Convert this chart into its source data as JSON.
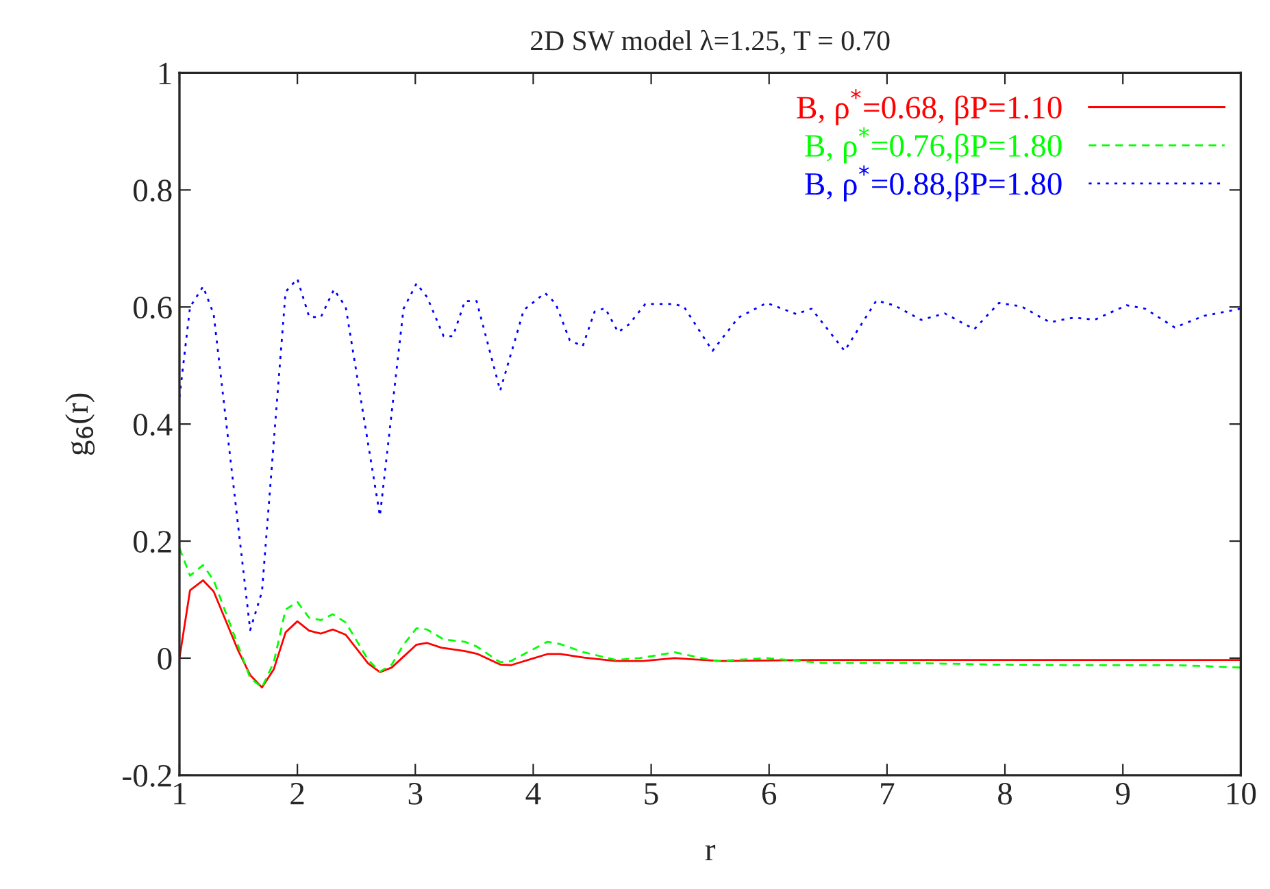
{
  "chart_data": {
    "type": "line",
    "title": "2D SW model λ=1.25, T = 0.70",
    "xlabel": "r",
    "ylabel": "g$_{6}$(r)",
    "xlim": [
      1,
      10
    ],
    "xticks": [
      1,
      2,
      3,
      4,
      5,
      6,
      7,
      8,
      9,
      10
    ],
    "ylim": [
      -0.2,
      1
    ],
    "yticks": [
      -0.2,
      0,
      0.2,
      0.4,
      0.6,
      0.8,
      1
    ],
    "grid": false,
    "legend": "top right",
    "series": [
      {
        "name": "B, ρ$^{*}$=0.68, βP=1.10",
        "color": "#ff0000",
        "line_style": "solid",
        "x": [
          1.0,
          1.09,
          1.2,
          1.29,
          1.5,
          1.6,
          1.7,
          1.8,
          1.9,
          2.0,
          2.1,
          2.2,
          2.3,
          2.41,
          2.6,
          2.7,
          2.8,
          3.01,
          3.1,
          3.22,
          3.42,
          3.53,
          3.72,
          3.81,
          4.12,
          4.23,
          4.43,
          4.7,
          4.93,
          5.2,
          5.59,
          6.36,
          7.0,
          8.0,
          9.0,
          10.0
        ],
        "values": [
          0,
          0.116,
          0.133,
          0.114,
          0.012,
          -0.029,
          -0.05,
          -0.019,
          0.044,
          0.063,
          0.047,
          0.042,
          0.049,
          0.04,
          -0.009,
          -0.024,
          -0.016,
          0.023,
          0.026,
          0.018,
          0.012,
          0.007,
          -0.011,
          -0.012,
          0.007,
          0.007,
          0.001,
          -0.005,
          -0.005,
          0.0,
          -0.005,
          -0.003,
          -0.003,
          -0.003,
          -0.003,
          -0.003
        ]
      },
      {
        "name": "B, ρ$^{*}$=0.76,βP=1.80",
        "color": "#00ff00",
        "line_style": "dashed",
        "x": [
          1.0,
          1.09,
          1.2,
          1.29,
          1.5,
          1.6,
          1.7,
          1.8,
          1.9,
          2.0,
          2.1,
          2.2,
          2.3,
          2.41,
          2.6,
          2.7,
          2.8,
          2.9,
          3.01,
          3.1,
          3.24,
          3.42,
          3.52,
          3.72,
          3.81,
          4.12,
          4.23,
          4.43,
          4.7,
          4.9,
          5.2,
          5.55,
          5.98,
          6.45,
          7.15,
          7.9,
          8.7,
          9.46,
          10.0
        ],
        "values": [
          0.188,
          0.141,
          0.159,
          0.133,
          0.02,
          -0.034,
          -0.05,
          -0.007,
          0.083,
          0.096,
          0.069,
          0.065,
          0.075,
          0.061,
          -0.003,
          -0.023,
          -0.011,
          0.023,
          0.051,
          0.049,
          0.032,
          0.028,
          0.02,
          -0.007,
          -0.005,
          0.028,
          0.024,
          0.01,
          -0.003,
          0,
          0.01,
          -0.005,
          0,
          -0.008,
          -0.008,
          -0.011,
          -0.012,
          -0.012,
          -0.016
        ]
      },
      {
        "name": "B, ρ$^{*}$=0.88,βP=1.80",
        "color": "#0000ff",
        "line_style": "dotted",
        "x": [
          1.0,
          1.09,
          1.2,
          1.29,
          1.6,
          1.7,
          1.9,
          2.0,
          2.1,
          2.2,
          2.31,
          2.41,
          2.7,
          2.9,
          3.01,
          3.1,
          3.24,
          3.32,
          3.42,
          3.52,
          3.72,
          3.92,
          4.1,
          4.19,
          4.31,
          4.42,
          4.52,
          4.61,
          4.72,
          4.81,
          4.95,
          5.2,
          5.28,
          5.52,
          5.74,
          5.98,
          6.23,
          6.36,
          6.64,
          6.91,
          7.06,
          7.29,
          7.49,
          7.74,
          7.95,
          8.14,
          8.38,
          8.59,
          8.76,
          9.03,
          9.19,
          9.44,
          9.69,
          10.0
        ],
        "values": [
          0.446,
          0.6,
          0.635,
          0.588,
          0.048,
          0.114,
          0.626,
          0.648,
          0.583,
          0.583,
          0.63,
          0.6,
          0.243,
          0.597,
          0.64,
          0.617,
          0.55,
          0.55,
          0.61,
          0.61,
          0.457,
          0.595,
          0.624,
          0.606,
          0.543,
          0.533,
          0.592,
          0.598,
          0.557,
          0.57,
          0.605,
          0.605,
          0.6,
          0.525,
          0.582,
          0.607,
          0.588,
          0.597,
          0.525,
          0.611,
          0.603,
          0.578,
          0.589,
          0.562,
          0.607,
          0.601,
          0.574,
          0.582,
          0.578,
          0.603,
          0.597,
          0.565,
          0.585,
          0.597
        ]
      }
    ]
  }
}
